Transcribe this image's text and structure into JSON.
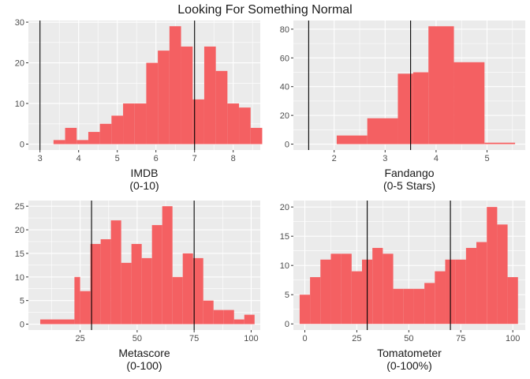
{
  "title": "Looking For Something Normal",
  "chart_data": [
    {
      "type": "bar",
      "histogram": true,
      "xlabel": [
        "IMDB",
        "(0-10)"
      ],
      "ylabel": "",
      "xlim": [
        2.7,
        8.7
      ],
      "ylim": [
        -1.45,
        30.4
      ],
      "x_ticks": [
        3,
        4,
        5,
        6,
        7,
        8
      ],
      "y_ticks": [
        0,
        10,
        20,
        30
      ],
      "vlines": [
        3,
        7
      ],
      "bins": [
        {
          "x0": 3.35,
          "x1": 3.65,
          "count": 1
        },
        {
          "x0": 3.65,
          "x1": 3.95,
          "count": 4
        },
        {
          "x0": 3.95,
          "x1": 4.25,
          "count": 1
        },
        {
          "x0": 4.25,
          "x1": 4.55,
          "count": 3
        },
        {
          "x0": 4.55,
          "x1": 4.85,
          "count": 5
        },
        {
          "x0": 4.85,
          "x1": 5.15,
          "count": 7
        },
        {
          "x0": 5.15,
          "x1": 5.45,
          "count": 10
        },
        {
          "x0": 5.45,
          "x1": 5.75,
          "count": 10
        },
        {
          "x0": 5.75,
          "x1": 6.05,
          "count": 20
        },
        {
          "x0": 6.05,
          "x1": 6.35,
          "count": 23
        },
        {
          "x0": 6.35,
          "x1": 6.65,
          "count": 29
        },
        {
          "x0": 6.65,
          "x1": 6.95,
          "count": 24
        },
        {
          "x0": 6.95,
          "x1": 7.25,
          "count": 11
        },
        {
          "x0": 7.25,
          "x1": 7.55,
          "count": 24
        },
        {
          "x0": 7.55,
          "x1": 7.85,
          "count": 18
        },
        {
          "x0": 7.85,
          "x1": 8.15,
          "count": 10
        },
        {
          "x0": 8.15,
          "x1": 8.45,
          "count": 9
        },
        {
          "x0": 8.45,
          "x1": 8.75,
          "count": 4
        }
      ],
      "fill": "#f46062"
    },
    {
      "type": "bar",
      "histogram": true,
      "xlabel": [
        "Fandango",
        "(0-5 Stars)"
      ],
      "ylabel": "",
      "xlim": [
        1.2,
        5.75
      ],
      "ylim": [
        -4.1,
        86
      ],
      "x_ticks": [
        2,
        3,
        4,
        5
      ],
      "y_ticks": [
        0,
        20,
        40,
        60,
        80
      ],
      "vlines": [
        1.5,
        3.5
      ],
      "bins": [
        {
          "x0": 2.05,
          "x1": 2.65,
          "count": 6
        },
        {
          "x0": 2.65,
          "x1": 3.25,
          "count": 18
        },
        {
          "x0": 3.25,
          "x1": 3.55,
          "count": 49
        },
        {
          "x0": 3.55,
          "x1": 3.85,
          "count": 50
        },
        {
          "x0": 3.85,
          "x1": 4.35,
          "count": 82
        },
        {
          "x0": 4.35,
          "x1": 4.95,
          "count": 57
        },
        {
          "x0": 4.95,
          "x1": 5.55,
          "count": 1
        }
      ],
      "fill": "#f46062"
    },
    {
      "type": "bar",
      "histogram": true,
      "xlabel": [
        "Metascore",
        "(0-100)"
      ],
      "ylabel": "",
      "xlim": [
        2.3,
        104
      ],
      "ylim": [
        -1.25,
        26.2
      ],
      "x_ticks": [
        25,
        50,
        75,
        100
      ],
      "y_ticks": [
        0,
        5,
        10,
        15,
        20,
        25
      ],
      "vlines": [
        30,
        75
      ],
      "bins": [
        {
          "x0": 7.5,
          "x1": 22.5,
          "count": 1
        },
        {
          "x0": 22.5,
          "x1": 25,
          "count": 10
        },
        {
          "x0": 25,
          "x1": 29.5,
          "count": 7
        },
        {
          "x0": 29.5,
          "x1": 34,
          "count": 17
        },
        {
          "x0": 34,
          "x1": 38.5,
          "count": 18
        },
        {
          "x0": 38.5,
          "x1": 43,
          "count": 22
        },
        {
          "x0": 43,
          "x1": 47.5,
          "count": 13
        },
        {
          "x0": 47.5,
          "x1": 52,
          "count": 17
        },
        {
          "x0": 52,
          "x1": 56.5,
          "count": 14
        },
        {
          "x0": 56.5,
          "x1": 61,
          "count": 21
        },
        {
          "x0": 61,
          "x1": 65.5,
          "count": 25
        },
        {
          "x0": 65.5,
          "x1": 70,
          "count": 10
        },
        {
          "x0": 70,
          "x1": 74.5,
          "count": 15
        },
        {
          "x0": 74.5,
          "x1": 79,
          "count": 14
        },
        {
          "x0": 79,
          "x1": 83.5,
          "count": 5
        },
        {
          "x0": 83.5,
          "x1": 88,
          "count": 3
        },
        {
          "x0": 88,
          "x1": 92.5,
          "count": 3
        },
        {
          "x0": 92.5,
          "x1": 97,
          "count": 1
        },
        {
          "x0": 97,
          "x1": 101.5,
          "count": 2
        }
      ],
      "fill": "#f46062"
    },
    {
      "type": "bar",
      "histogram": true,
      "xlabel": [
        "Tomatometer",
        "(0-100%)"
      ],
      "ylabel": "",
      "xlim": [
        -5.5,
        106
      ],
      "ylim": [
        -1.05,
        21.1
      ],
      "x_ticks": [
        0,
        25,
        50,
        75,
        100
      ],
      "y_ticks": [
        0,
        5,
        10,
        15,
        20
      ],
      "vlines": [
        30,
        70
      ],
      "bins": [
        {
          "x0": -2.5,
          "x1": 2.5,
          "count": 5
        },
        {
          "x0": 2.5,
          "x1": 7.5,
          "count": 8
        },
        {
          "x0": 7.5,
          "x1": 12.5,
          "count": 11
        },
        {
          "x0": 12.5,
          "x1": 17.5,
          "count": 12
        },
        {
          "x0": 17.5,
          "x1": 22.5,
          "count": 12
        },
        {
          "x0": 22.5,
          "x1": 27.5,
          "count": 9
        },
        {
          "x0": 27.5,
          "x1": 32.5,
          "count": 11
        },
        {
          "x0": 32.5,
          "x1": 37.5,
          "count": 13
        },
        {
          "x0": 37.5,
          "x1": 42.5,
          "count": 12
        },
        {
          "x0": 42.5,
          "x1": 47.5,
          "count": 6
        },
        {
          "x0": 47.5,
          "x1": 52.5,
          "count": 6
        },
        {
          "x0": 52.5,
          "x1": 57.5,
          "count": 6
        },
        {
          "x0": 57.5,
          "x1": 62.5,
          "count": 7
        },
        {
          "x0": 62.5,
          "x1": 67.5,
          "count": 9
        },
        {
          "x0": 67.5,
          "x1": 72.5,
          "count": 11
        },
        {
          "x0": 72.5,
          "x1": 77.5,
          "count": 11
        },
        {
          "x0": 77.5,
          "x1": 82.5,
          "count": 13
        },
        {
          "x0": 82.5,
          "x1": 87.5,
          "count": 14
        },
        {
          "x0": 87.5,
          "x1": 92.5,
          "count": 20
        },
        {
          "x0": 92.5,
          "x1": 97.5,
          "count": 17
        },
        {
          "x0": 97.5,
          "x1": 102.5,
          "count": 8
        }
      ],
      "fill": "#f46062"
    }
  ]
}
